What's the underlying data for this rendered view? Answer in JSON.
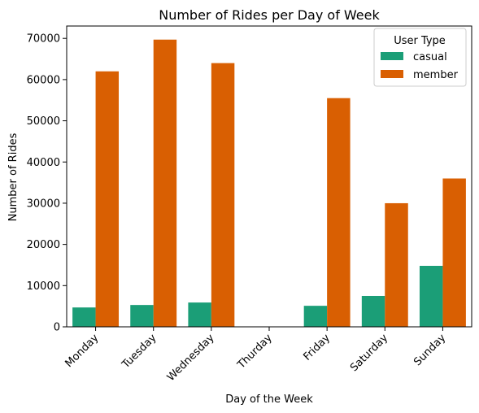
{
  "chart_data": {
    "type": "bar",
    "title": "Number of Rides per Day of Week",
    "xlabel": "Day of the Week",
    "ylabel": "Number of Rides",
    "categories": [
      "Monday",
      "Tuesday",
      "Wednesday",
      "Thurday",
      "Friday",
      "Saturday",
      "Sunday"
    ],
    "series": [
      {
        "name": "casual",
        "color": "#1b9e77",
        "values": [
          4700,
          5300,
          5900,
          0,
          5100,
          7500,
          14800
        ]
      },
      {
        "name": "member",
        "color": "#d95f02",
        "values": [
          62000,
          69700,
          64000,
          0,
          55500,
          30000,
          36000
        ]
      }
    ],
    "ylim": [
      0,
      73000
    ],
    "yticks": [
      0,
      10000,
      20000,
      30000,
      40000,
      50000,
      60000,
      70000
    ],
    "legend": {
      "title": "User Type",
      "position": "top-right"
    },
    "grid": false
  }
}
